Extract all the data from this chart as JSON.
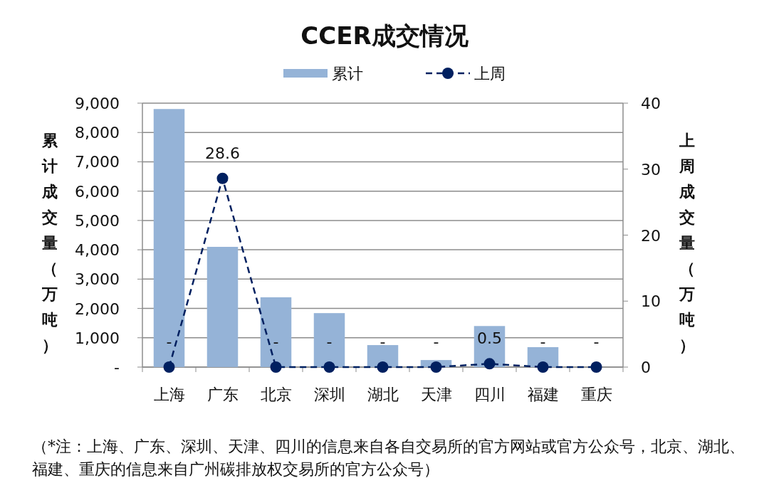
{
  "chart_data": {
    "type": "bar",
    "title": "CCER成交情况",
    "ylabel": "累计成交量（万吨）",
    "y2label": "上周成交量（万吨）",
    "categories": [
      "上海",
      "广东",
      "北京",
      "深圳",
      "湖北",
      "天津",
      "四川",
      "福建",
      "重庆"
    ],
    "series": [
      {
        "name": "累计",
        "color": "#95b3d7",
        "values": [
          8800,
          4100,
          2380,
          1840,
          750,
          240,
          1400,
          680,
          0
        ]
      },
      {
        "name": "上周",
        "type": "line",
        "axis": "y2",
        "color": "#002060",
        "marker": "circle",
        "line_style": "dashed",
        "values": [
          0,
          28.6,
          0,
          0,
          0,
          0,
          0.5,
          0,
          0
        ],
        "value_labels": [
          "-",
          "28.6",
          "-",
          "-",
          "-",
          "-",
          "0.5",
          "-",
          "-"
        ]
      }
    ],
    "ylim": [
      0,
      9000
    ],
    "yticks": [
      {
        "value": 0,
        "label": "-"
      },
      {
        "value": 1000,
        "label": "1,000"
      },
      {
        "value": 2000,
        "label": "2,000"
      },
      {
        "value": 3000,
        "label": "3,000"
      },
      {
        "value": 4000,
        "label": "4,000"
      },
      {
        "value": 5000,
        "label": "5,000"
      },
      {
        "value": 6000,
        "label": "6,000"
      },
      {
        "value": 7000,
        "label": "7,000"
      },
      {
        "value": 8000,
        "label": "8,000"
      },
      {
        "value": 9000,
        "label": "9,000"
      }
    ],
    "y2lim": [
      0,
      40
    ],
    "y2ticks": [
      0,
      10,
      20,
      30,
      40
    ],
    "grid": "y",
    "legend": "top",
    "annotations": [
      "（*注：上海、广东、深圳、天津、四川的信息来自各自交易所的官方网站或官方公众号，北京、湖北、福建、重庆的信息来自广州碳排放权交易所的官方公众号）"
    ]
  }
}
